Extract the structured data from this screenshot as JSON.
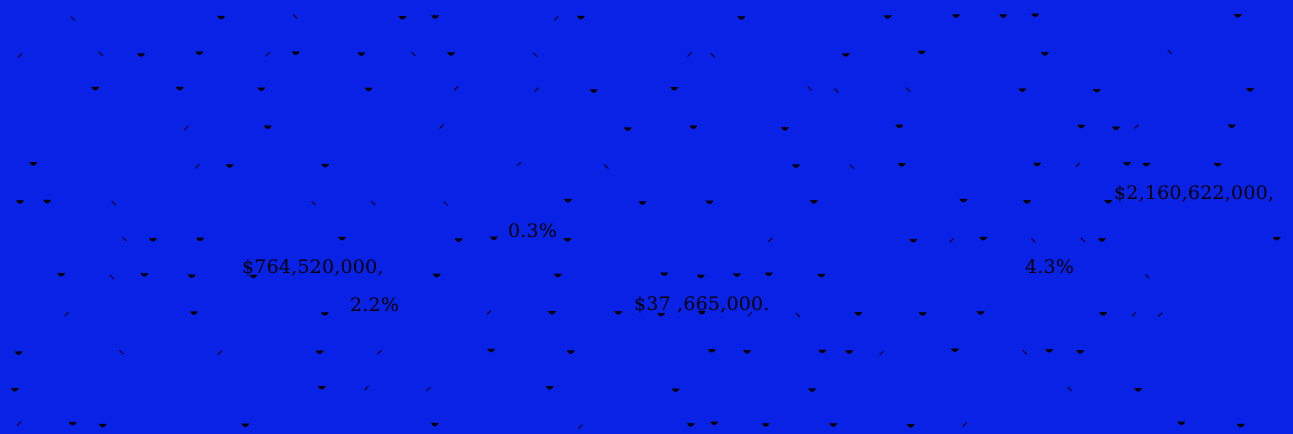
{
  "colors": {
    "background": "#0a22e6",
    "ink": "#000000"
  },
  "labels": {
    "amount_top_right": "$2,160,622,000,",
    "amount_left": "$764,520,000,",
    "amount_center": "$37  ,665,000.",
    "pct_center": "0.3%",
    "pct_left": "2.2%",
    "pct_right": "4.3%"
  }
}
